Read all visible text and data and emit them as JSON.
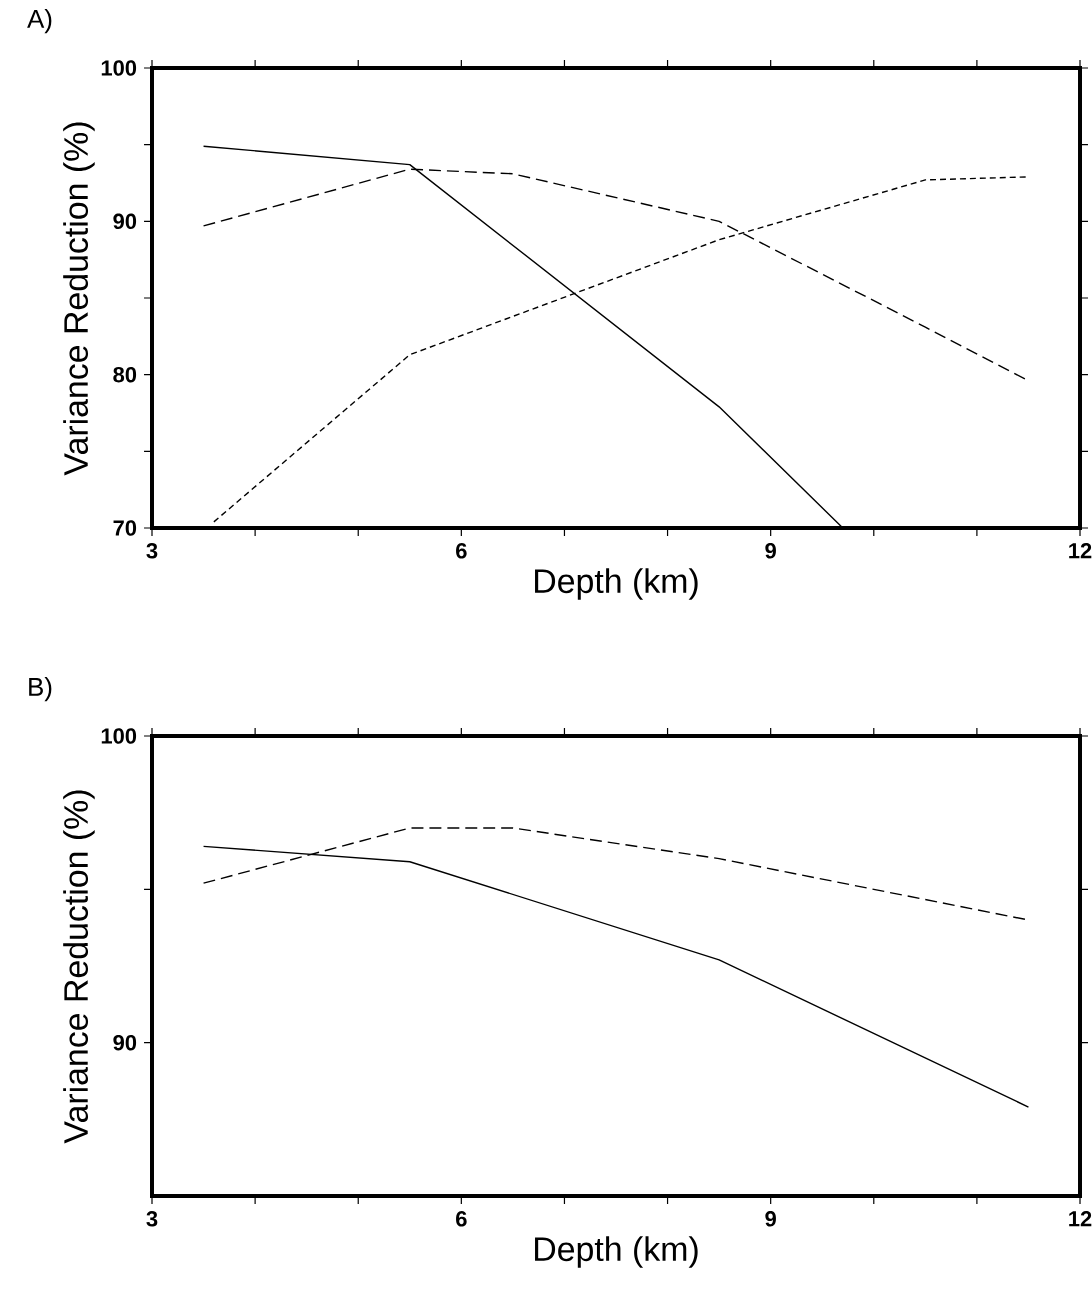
{
  "chart_data": [
    {
      "type": "line",
      "title": "A)",
      "xlabel": "Depth (km)",
      "ylabel": "Variance Reduction (%)",
      "xlim": [
        3,
        12
      ],
      "ylim": [
        70,
        100
      ],
      "marker": "none",
      "xticks": [
        3,
        {
          "value": 4,
          "label": null
        },
        {
          "value": 5,
          "label": null
        },
        6,
        {
          "value": 7,
          "label": null
        },
        {
          "value": 8,
          "label": null
        },
        9,
        {
          "value": 10,
          "label": null
        },
        {
          "value": 11,
          "label": null
        },
        12
      ],
      "yticks": [
        70,
        {
          "value": 75,
          "label": null
        },
        80,
        {
          "value": 85,
          "label": null
        },
        90,
        {
          "value": 95,
          "label": null
        },
        100
      ],
      "series": [
        {
          "color": "#000000",
          "line_style": "solid",
          "x": [
            3.5,
            5.5,
            8.5,
            9.7
          ],
          "values": [
            94.9,
            93.7,
            77.9,
            70
          ]
        },
        {
          "color": "#000000",
          "line_style": "dashed",
          "x": [
            3.5,
            5.5,
            6.5,
            8.5,
            10.5,
            11.5
          ],
          "values": [
            89.7,
            93.4,
            93.1,
            90.0,
            83.1,
            79.6
          ]
        },
        {
          "color": "#000000",
          "line_style": "dashed",
          "x": [
            3.6,
            5.5,
            6.5,
            8.5,
            10.5,
            11.5
          ],
          "values": [
            70.4,
            81.3,
            83.8,
            88.8,
            92.7,
            92.9
          ]
        }
      ]
    },
    {
      "type": "line",
      "title": "B)",
      "xlabel": "Depth (km)",
      "ylabel": "Variance Reduction (%)",
      "xlim": [
        3,
        12
      ],
      "ylim": [
        85,
        100
      ],
      "marker": "none",
      "xticks": [
        3,
        {
          "value": 4,
          "label": null
        },
        {
          "value": 5,
          "label": null
        },
        6,
        {
          "value": 7,
          "label": null
        },
        {
          "value": 8,
          "label": null
        },
        9,
        {
          "value": 10,
          "label": null
        },
        {
          "value": 11,
          "label": null
        },
        12
      ],
      "yticks": [
        90,
        {
          "value": 95,
          "label": null
        },
        100
      ],
      "series": [
        {
          "color": "#000000",
          "line_style": "solid",
          "x": [
            3.5,
            5.5,
            8.5,
            11.5
          ],
          "values": [
            96.4,
            95.9,
            92.7,
            87.9
          ]
        },
        {
          "color": "#000000",
          "line_style": "dashed",
          "x": [
            3.5,
            5.5,
            6.5,
            8.5,
            11.5
          ],
          "values": [
            95.2,
            97.0,
            97.0,
            96.0,
            94.0
          ]
        }
      ]
    }
  ]
}
